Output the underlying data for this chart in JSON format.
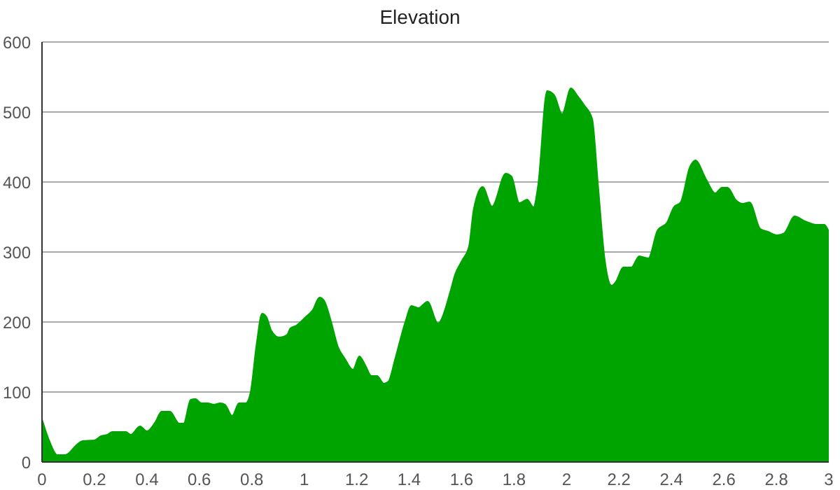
{
  "chart_data": {
    "type": "area",
    "title": "Elevation",
    "x": [
      0,
      0.028,
      0.058,
      0.084,
      0.1,
      0.128,
      0.155,
      0.2,
      0.225,
      0.25,
      0.268,
      0.32,
      0.338,
      0.374,
      0.4,
      0.432,
      0.456,
      0.488,
      0.523,
      0.54,
      0.567,
      0.585,
      0.607,
      0.632,
      0.655,
      0.68,
      0.698,
      0.725,
      0.751,
      0.777,
      0.795,
      0.818,
      0.839,
      0.856,
      0.874,
      0.905,
      0.935,
      0.947,
      0.97,
      1.005,
      1.032,
      1.058,
      1.075,
      1.102,
      1.128,
      1.154,
      1.186,
      1.21,
      1.233,
      1.256,
      1.277,
      1.304,
      1.321,
      1.347,
      1.386,
      1.409,
      1.435,
      1.47,
      1.51,
      1.558,
      1.575,
      1.602,
      1.628,
      1.646,
      1.68,
      1.716,
      1.768,
      1.79,
      1.82,
      1.85,
      1.874,
      1.891,
      1.926,
      1.953,
      1.983,
      2.017,
      2.04,
      2.067,
      2.098,
      2.119,
      2.146,
      2.172,
      2.189,
      2.216,
      2.247,
      2.277,
      2.312,
      2.347,
      2.383,
      2.409,
      2.435,
      2.47,
      2.491,
      2.532,
      2.567,
      2.593,
      2.614,
      2.646,
      2.672,
      2.698,
      2.739,
      2.768,
      2.803,
      2.83,
      2.87,
      2.909,
      2.953,
      2.983,
      3
    ],
    "series": [
      {
        "color": "#00a400",
        "values": [
          61,
          30,
          10,
          10,
          12,
          23,
          30,
          31,
          37,
          39,
          43,
          43,
          39,
          51,
          44,
          57,
          72,
          72,
          55,
          55,
          89,
          90,
          84,
          84,
          82,
          84,
          82,
          66,
          84,
          84,
          99,
          168,
          212,
          207,
          188,
          178,
          182,
          191,
          195,
          207,
          217,
          235,
          231,
          201,
          165,
          148,
          132,
          151,
          138,
          123,
          123,
          112,
          115,
          148,
          201,
          223,
          220,
          229,
          198,
          245,
          268,
          288,
          308,
          361,
          393,
          365,
          412,
          408,
          370,
          375,
          364,
          394,
          530,
          524,
          497,
          534,
          524,
          510,
          490,
          401,
          288,
          252,
          258,
          278,
          278,
          294,
          291,
          331,
          342,
          364,
          371,
          421,
          431,
          404,
          384,
          392,
          392,
          374,
          369,
          371,
          333,
          329,
          324,
          327,
          351,
          344,
          339,
          339,
          329
        ]
      }
    ],
    "xlim": [
      0,
      3
    ],
    "xticks": [
      0,
      0.2,
      0.4,
      0.6,
      0.8,
      1,
      1.2,
      1.4,
      1.6,
      1.8,
      2,
      2.2,
      2.4,
      2.6,
      2.8,
      3
    ],
    "ylim": [
      0,
      600
    ],
    "yticks": [
      0,
      100,
      200,
      300,
      400,
      500,
      600
    ],
    "grid": "y"
  }
}
